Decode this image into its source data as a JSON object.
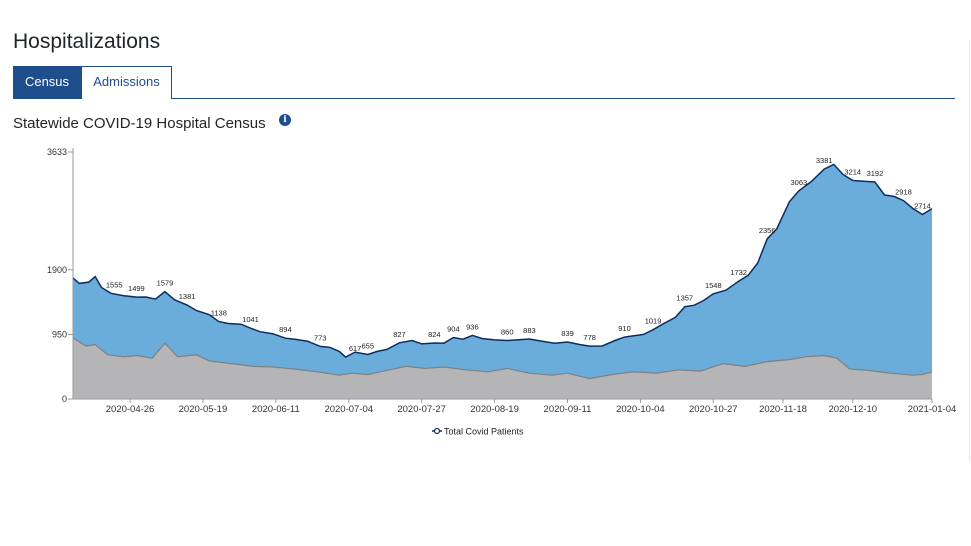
{
  "page": {
    "title": "Hospitalizations",
    "tabs": [
      {
        "label": "Census",
        "active": true
      },
      {
        "label": "Admissions",
        "active": false
      }
    ],
    "chart_title": "Statewide COVID-19 Hospital Census",
    "info_icon": "info-icon"
  },
  "colors": {
    "accent": "#1f4e8c",
    "total_fill": "#6aaddb",
    "total_line": "#0d2d5e",
    "lower_fill": "#b5b5b8",
    "lower_line": "#808080"
  },
  "chart_data": {
    "type": "area",
    "title": "Statewide COVID-19 Hospital Census",
    "xlabel": "",
    "ylabel": "",
    "y_ticks": [
      0,
      950,
      1900,
      3633
    ],
    "ylim": [
      0,
      3633
    ],
    "x_ticks": [
      "2020-04-26",
      "2020-05-19",
      "2020-06-11",
      "2020-07-04",
      "2020-07-27",
      "2020-08-19",
      "2020-09-11",
      "2020-10-04",
      "2020-10-27",
      "2020-11-18",
      "2020-12-10",
      "2021-01-04"
    ],
    "x_range": [
      "2020-04-08",
      "2021-01-04"
    ],
    "legend": {
      "placement": "bottom-center",
      "entries": [
        "Total Covid Patients"
      ]
    },
    "series": [
      {
        "name": "Total Covid Patients",
        "points": [
          [
            "2020-04-08",
            1780
          ],
          [
            "2020-04-10",
            1700
          ],
          [
            "2020-04-13",
            1720
          ],
          [
            "2020-04-15",
            1800
          ],
          [
            "2020-04-17",
            1640
          ],
          [
            "2020-04-20",
            1555
          ],
          [
            "2020-04-24",
            1520
          ],
          [
            "2020-04-28",
            1499
          ],
          [
            "2020-05-01",
            1500
          ],
          [
            "2020-05-04",
            1470
          ],
          [
            "2020-05-07",
            1579
          ],
          [
            "2020-05-10",
            1460
          ],
          [
            "2020-05-14",
            1381
          ],
          [
            "2020-05-17",
            1300
          ],
          [
            "2020-05-21",
            1240
          ],
          [
            "2020-05-24",
            1138
          ],
          [
            "2020-05-27",
            1110
          ],
          [
            "2020-05-31",
            1100
          ],
          [
            "2020-06-03",
            1041
          ],
          [
            "2020-06-06",
            990
          ],
          [
            "2020-06-10",
            960
          ],
          [
            "2020-06-14",
            894
          ],
          [
            "2020-06-17",
            880
          ],
          [
            "2020-06-21",
            850
          ],
          [
            "2020-06-25",
            773
          ],
          [
            "2020-06-28",
            760
          ],
          [
            "2020-07-01",
            700
          ],
          [
            "2020-07-03",
            617
          ],
          [
            "2020-07-06",
            690
          ],
          [
            "2020-07-10",
            655
          ],
          [
            "2020-07-13",
            700
          ],
          [
            "2020-07-16",
            730
          ],
          [
            "2020-07-20",
            827
          ],
          [
            "2020-07-24",
            860
          ],
          [
            "2020-07-27",
            810
          ],
          [
            "2020-07-31",
            824
          ],
          [
            "2020-08-03",
            820
          ],
          [
            "2020-08-06",
            904
          ],
          [
            "2020-08-09",
            880
          ],
          [
            "2020-08-12",
            936
          ],
          [
            "2020-08-15",
            890
          ],
          [
            "2020-08-19",
            870
          ],
          [
            "2020-08-23",
            860
          ],
          [
            "2020-08-26",
            870
          ],
          [
            "2020-08-30",
            883
          ],
          [
            "2020-09-03",
            850
          ],
          [
            "2020-09-07",
            820
          ],
          [
            "2020-09-11",
            839
          ],
          [
            "2020-09-15",
            800
          ],
          [
            "2020-09-18",
            778
          ],
          [
            "2020-09-22",
            780
          ],
          [
            "2020-09-26",
            860
          ],
          [
            "2020-09-29",
            910
          ],
          [
            "2020-10-02",
            930
          ],
          [
            "2020-10-05",
            950
          ],
          [
            "2020-10-08",
            1019
          ],
          [
            "2020-10-11",
            1100
          ],
          [
            "2020-10-15",
            1200
          ],
          [
            "2020-10-18",
            1357
          ],
          [
            "2020-10-21",
            1380
          ],
          [
            "2020-10-24",
            1450
          ],
          [
            "2020-10-27",
            1548
          ],
          [
            "2020-10-31",
            1600
          ],
          [
            "2020-11-04",
            1732
          ],
          [
            "2020-11-07",
            1820
          ],
          [
            "2020-11-10",
            2000
          ],
          [
            "2020-11-13",
            2356
          ],
          [
            "2020-11-16",
            2500
          ],
          [
            "2020-11-20",
            2900
          ],
          [
            "2020-11-23",
            3063
          ],
          [
            "2020-11-27",
            3200
          ],
          [
            "2020-12-01",
            3381
          ],
          [
            "2020-12-04",
            3450
          ],
          [
            "2020-12-07",
            3300
          ],
          [
            "2020-12-10",
            3214
          ],
          [
            "2020-12-14",
            3200
          ],
          [
            "2020-12-17",
            3192
          ],
          [
            "2020-12-20",
            3000
          ],
          [
            "2020-12-23",
            2980
          ],
          [
            "2020-12-26",
            2918
          ],
          [
            "2020-12-29",
            2800
          ],
          [
            "2021-01-01",
            2714
          ],
          [
            "2021-01-04",
            2800
          ]
        ]
      },
      {
        "name": "",
        "points": [
          [
            "2020-04-08",
            900
          ],
          [
            "2020-04-12",
            780
          ],
          [
            "2020-04-15",
            800
          ],
          [
            "2020-04-19",
            650
          ],
          [
            "2020-04-24",
            620
          ],
          [
            "2020-04-28",
            640
          ],
          [
            "2020-05-03",
            600
          ],
          [
            "2020-05-07",
            820
          ],
          [
            "2020-05-11",
            620
          ],
          [
            "2020-05-17",
            650
          ],
          [
            "2020-05-21",
            560
          ],
          [
            "2020-05-28",
            520
          ],
          [
            "2020-06-04",
            480
          ],
          [
            "2020-06-10",
            470
          ],
          [
            "2020-06-17",
            440
          ],
          [
            "2020-06-24",
            400
          ],
          [
            "2020-07-01",
            350
          ],
          [
            "2020-07-05",
            380
          ],
          [
            "2020-07-10",
            360
          ],
          [
            "2020-07-16",
            420
          ],
          [
            "2020-07-22",
            480
          ],
          [
            "2020-07-28",
            450
          ],
          [
            "2020-08-03",
            470
          ],
          [
            "2020-08-10",
            430
          ],
          [
            "2020-08-17",
            400
          ],
          [
            "2020-08-23",
            450
          ],
          [
            "2020-08-30",
            380
          ],
          [
            "2020-09-06",
            350
          ],
          [
            "2020-09-11",
            380
          ],
          [
            "2020-09-18",
            300
          ],
          [
            "2020-09-25",
            360
          ],
          [
            "2020-10-02",
            400
          ],
          [
            "2020-10-09",
            380
          ],
          [
            "2020-10-16",
            430
          ],
          [
            "2020-10-23",
            410
          ],
          [
            "2020-10-30",
            520
          ],
          [
            "2020-11-06",
            480
          ],
          [
            "2020-11-13",
            550
          ],
          [
            "2020-11-20",
            580
          ],
          [
            "2020-11-25",
            620
          ],
          [
            "2020-12-01",
            640
          ],
          [
            "2020-12-05",
            600
          ],
          [
            "2020-12-09",
            440
          ],
          [
            "2020-12-15",
            420
          ],
          [
            "2020-12-22",
            380
          ],
          [
            "2020-12-29",
            350
          ],
          [
            "2021-01-01",
            360
          ],
          [
            "2021-01-04",
            400
          ]
        ]
      }
    ],
    "data_labels": [
      [
        "2020-04-21",
        1555
      ],
      [
        "2020-04-28",
        1499
      ],
      [
        "2020-05-07",
        1579
      ],
      [
        "2020-05-14",
        1381
      ],
      [
        "2020-05-24",
        1138
      ],
      [
        "2020-06-03",
        1041
      ],
      [
        "2020-06-14",
        894
      ],
      [
        "2020-06-25",
        773
      ],
      [
        "2020-07-06",
        617
      ],
      [
        "2020-07-10",
        655
      ],
      [
        "2020-07-20",
        827
      ],
      [
        "2020-07-31",
        824
      ],
      [
        "2020-08-06",
        904
      ],
      [
        "2020-08-12",
        936
      ],
      [
        "2020-08-23",
        860
      ],
      [
        "2020-08-30",
        883
      ],
      [
        "2020-09-11",
        839
      ],
      [
        "2020-09-18",
        778
      ],
      [
        "2020-09-29",
        910
      ],
      [
        "2020-10-08",
        1019
      ],
      [
        "2020-10-18",
        1357
      ],
      [
        "2020-10-27",
        1548
      ],
      [
        "2020-11-04",
        1732
      ],
      [
        "2020-11-13",
        2356
      ],
      [
        "2020-11-23",
        3063
      ],
      [
        "2020-12-01",
        3381
      ],
      [
        "2020-12-10",
        3214
      ],
      [
        "2020-12-17",
        3192
      ],
      [
        "2020-12-26",
        2918
      ],
      [
        "2021-01-01",
        2714
      ]
    ],
    "grid": false
  }
}
